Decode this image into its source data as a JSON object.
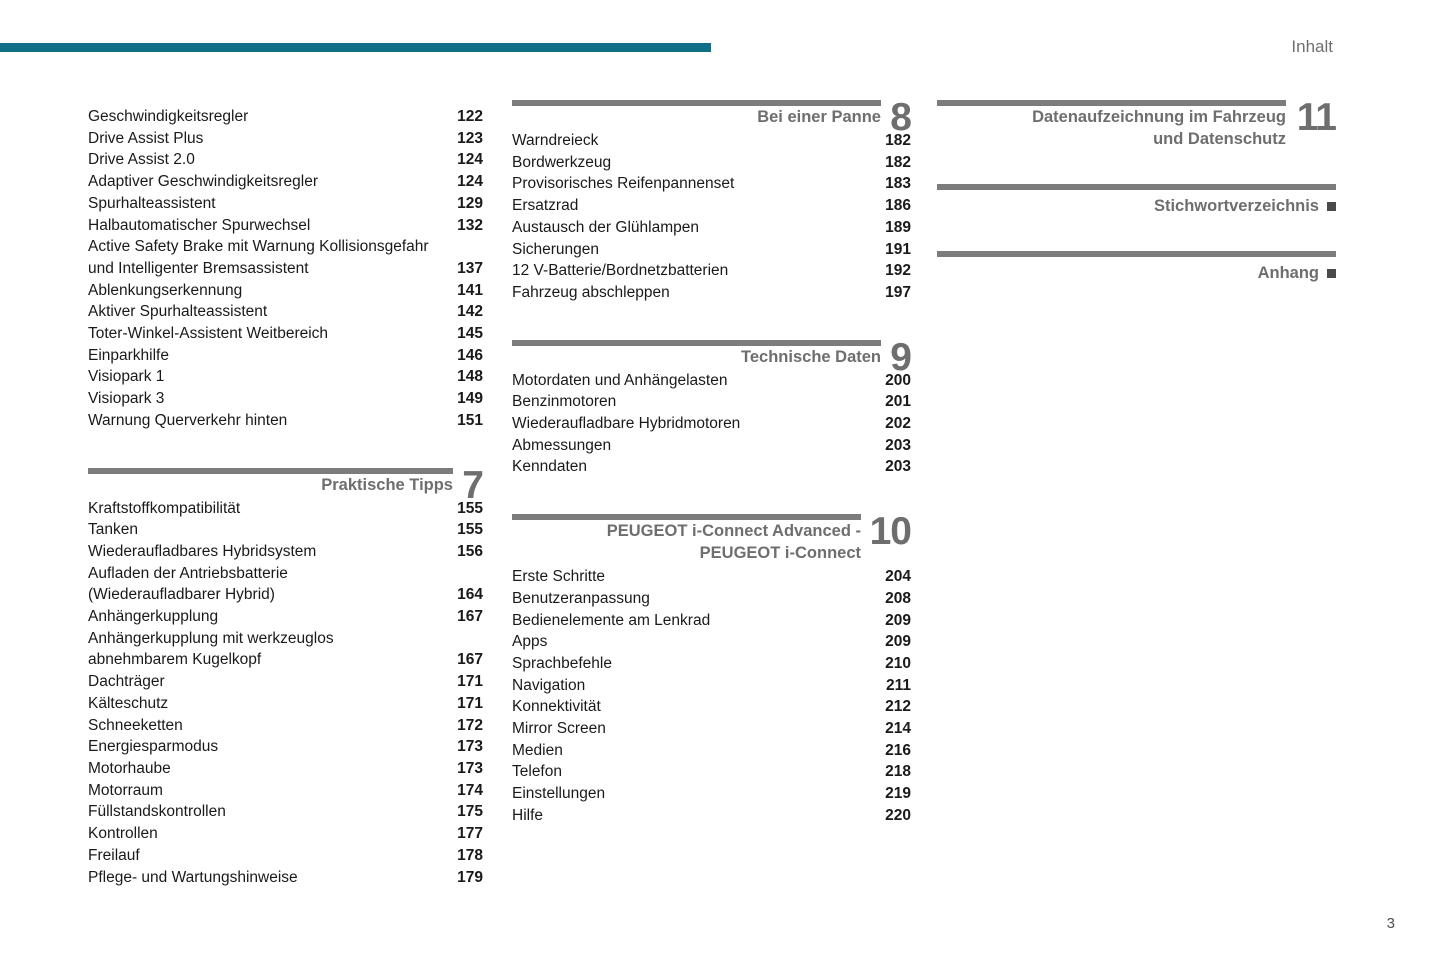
{
  "header": {
    "label": "Inhalt"
  },
  "footer": {
    "page_number": "3"
  },
  "colors": {
    "accent_teal": "#106e87",
    "section_gray": "#6e6e6e",
    "bar_gray": "#7c7c7c",
    "text_black": "#1a1a1a"
  },
  "columns": [
    {
      "sections": [
        {
          "entries": [
            {
              "label": "Geschwindigkeitsregler",
              "page": "122"
            },
            {
              "label": "Drive Assist Plus",
              "page": "123"
            },
            {
              "label": "Drive Assist 2.0",
              "page": "124"
            },
            {
              "label": "Adaptiver Geschwindigkeitsregler",
              "page": "124"
            },
            {
              "label": "Spurhalteassistent",
              "page": "129"
            },
            {
              "label": "Halbautomatischer Spurwechsel",
              "page": "132"
            },
            {
              "label": "Active Safety Brake mit Warnung Kollisionsgefahr",
              "page": ""
            },
            {
              "label": "und Intelligenter Bremsassistent",
              "page": "137"
            },
            {
              "label": "Ablenkungserkennung",
              "page": "141"
            },
            {
              "label": "Aktiver Spurhalteassistent",
              "page": "142"
            },
            {
              "label": "Toter-Winkel-Assistent Weitbereich",
              "page": "145"
            },
            {
              "label": "Einparkhilfe",
              "page": "146"
            },
            {
              "label": "Visiopark 1",
              "page": "148"
            },
            {
              "label": "Visiopark 3",
              "page": "149"
            },
            {
              "label": "Warnung Querverkehr hinten",
              "page": "151"
            }
          ]
        },
        {
          "number": "7",
          "title_lines": [
            "Praktische Tipps"
          ],
          "entries": [
            {
              "label": "Kraftstoffkompatibilität",
              "page": "155"
            },
            {
              "label": "Tanken",
              "page": "155"
            },
            {
              "label": "Wiederaufladbares Hybridsystem",
              "page": "156"
            },
            {
              "label": "Aufladen der Antriebsbatterie",
              "page": ""
            },
            {
              "label": "(Wiederaufladbarer Hybrid)",
              "page": "164"
            },
            {
              "label": "Anhängerkupplung",
              "page": "167"
            },
            {
              "label": "Anhängerkupplung mit werkzeuglos",
              "page": ""
            },
            {
              "label": "abnehmbarem Kugelkopf",
              "page": "167"
            },
            {
              "label": "Dachträger",
              "page": "171"
            },
            {
              "label": "Kälteschutz",
              "page": "171"
            },
            {
              "label": "Schneeketten",
              "page": "172"
            },
            {
              "label": "Energiesparmodus",
              "page": "173"
            },
            {
              "label": "Motorhaube",
              "page": "173"
            },
            {
              "label": "Motorraum",
              "page": "174"
            },
            {
              "label": "Füllstandskontrollen",
              "page": "175"
            },
            {
              "label": "Kontrollen",
              "page": "177"
            },
            {
              "label": "Freilauf",
              "page": "178"
            },
            {
              "label": "Pflege- und Wartungshinweise",
              "page": "179"
            }
          ]
        }
      ]
    },
    {
      "sections": [
        {
          "number": "8",
          "title_lines": [
            "Bei einer Panne"
          ],
          "entries": [
            {
              "label": "Warndreieck",
              "page": "182"
            },
            {
              "label": "Bordwerkzeug",
              "page": "182"
            },
            {
              "label": "Provisorisches Reifenpannenset",
              "page": "183"
            },
            {
              "label": "Ersatzrad",
              "page": "186"
            },
            {
              "label": "Austausch der Glühlampen",
              "page": "189"
            },
            {
              "label": "Sicherungen",
              "page": "191"
            },
            {
              "label": "12 V-Batterie/Bordnetzbatterien",
              "page": "192"
            },
            {
              "label": "Fahrzeug abschleppen",
              "page": "197"
            }
          ]
        },
        {
          "number": "9",
          "title_lines": [
            "Technische Daten"
          ],
          "entries": [
            {
              "label": "Motordaten und Anhängelasten",
              "page": "200"
            },
            {
              "label": "Benzinmotoren",
              "page": "201"
            },
            {
              "label": "Wiederaufladbare Hybridmotoren",
              "page": "202"
            },
            {
              "label": "Abmessungen",
              "page": "203"
            },
            {
              "label": "Kenndaten",
              "page": "203"
            }
          ]
        },
        {
          "number": "10",
          "title_lines": [
            "PEUGEOT i-Connect Advanced -",
            "PEUGEOT i-Connect"
          ],
          "entries": [
            {
              "label": "Erste Schritte",
              "page": "204"
            },
            {
              "label": "Benutzeranpassung",
              "page": "208"
            },
            {
              "label": "Bedienelemente am Lenkrad",
              "page": "209"
            },
            {
              "label": "Apps",
              "page": "209"
            },
            {
              "label": "Sprachbefehle",
              "page": "210"
            },
            {
              "label": "Navigation",
              "page": "211"
            },
            {
              "label": "Konnektivität",
              "page": "212"
            },
            {
              "label": "Mirror Screen",
              "page": "214"
            },
            {
              "label": "Medien",
              "page": "216"
            },
            {
              "label": "Telefon",
              "page": "218"
            },
            {
              "label": "Einstellungen",
              "page": "219"
            },
            {
              "label": "Hilfe",
              "page": "220"
            }
          ]
        }
      ]
    },
    {
      "sections": [
        {
          "number": "11",
          "title_lines": [
            "Datenaufzeichnung im Fahrzeug",
            "und Datenschutz"
          ],
          "entries": []
        },
        {
          "marker": "square",
          "title_lines": [
            "Stichwortverzeichnis"
          ],
          "entries": []
        },
        {
          "marker": "square",
          "title_lines": [
            "Anhang"
          ],
          "entries": []
        }
      ]
    }
  ]
}
